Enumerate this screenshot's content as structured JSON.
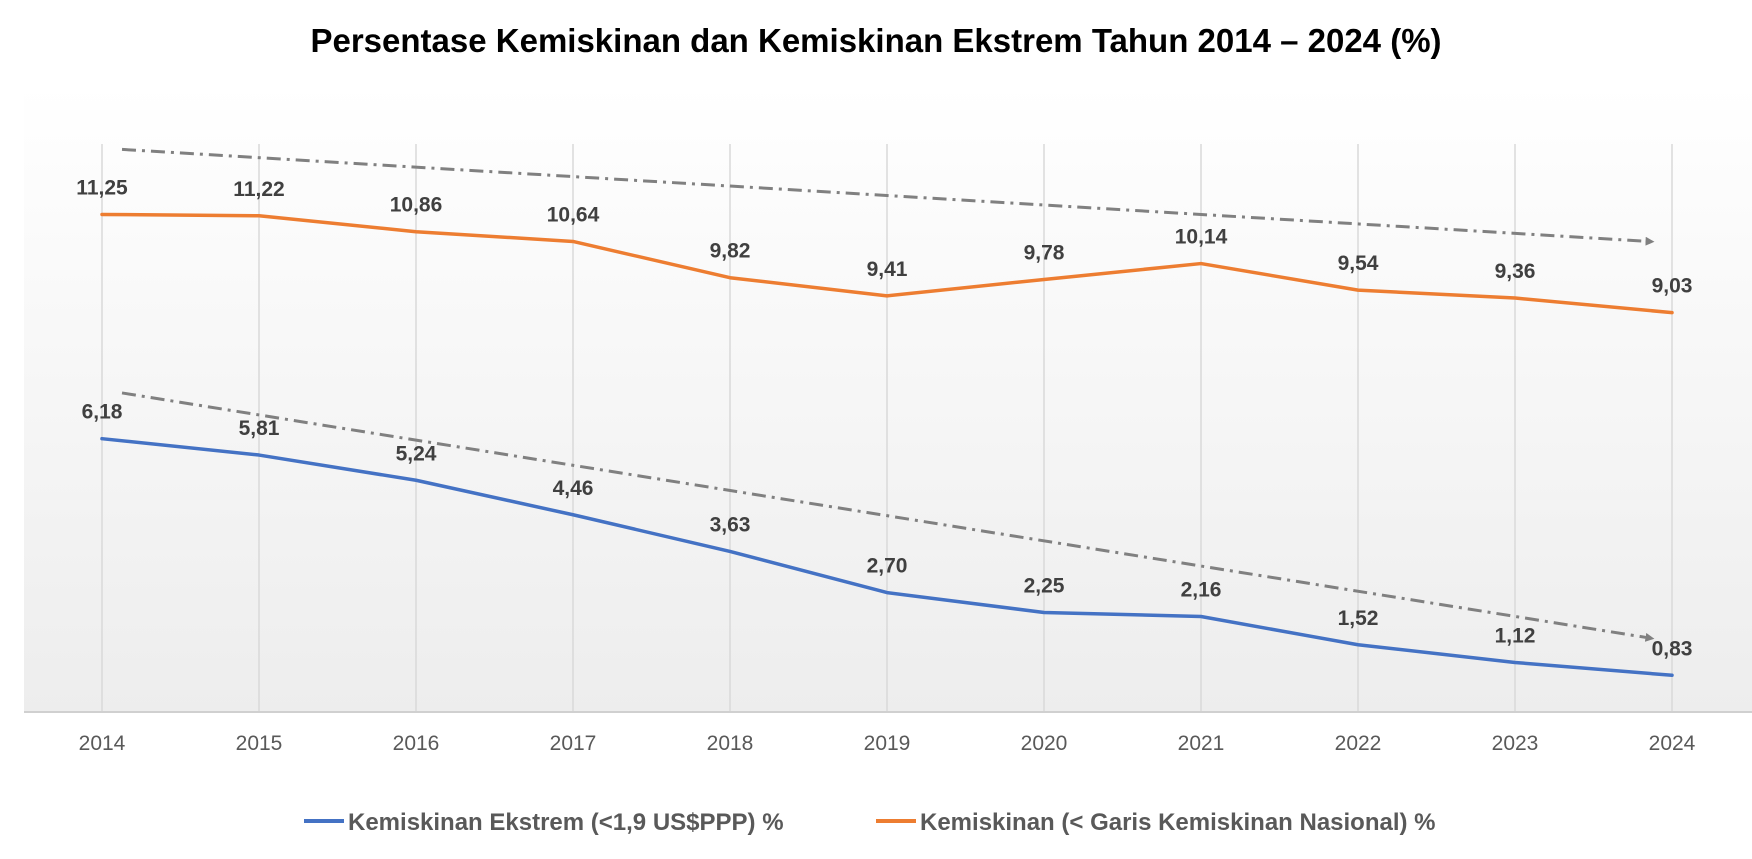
{
  "chart_data": {
    "type": "line",
    "title": "Persentase Kemiskinan dan Kemiskinan Ekstrem Tahun 2014 – 2024 (%)",
    "xlabel": "",
    "ylabel": "",
    "categories": [
      "2014",
      "2015",
      "2016",
      "2017",
      "2018",
      "2019",
      "2020",
      "2021",
      "2022",
      "2023",
      "2024"
    ],
    "series": [
      {
        "name": "Kemiskinan Ekstrem (<1,9 US$PPP) %",
        "color": "#4472C4",
        "values": [
          6.18,
          5.81,
          5.24,
          4.46,
          3.63,
          2.7,
          2.25,
          2.16,
          1.52,
          1.12,
          0.83
        ],
        "labels": [
          "6,18",
          "5,81",
          "5,24",
          "4,46",
          "3,63",
          "2,70",
          "2,25",
          "2,16",
          "1,52",
          "1,12",
          "0,83"
        ]
      },
      {
        "name": "Kemiskinan (< Garis Kemiskinan Nasional) %",
        "color": "#ED7D31",
        "values": [
          11.25,
          11.22,
          10.86,
          10.64,
          9.82,
          9.41,
          9.78,
          10.14,
          9.54,
          9.36,
          9.03
        ],
        "labels": [
          "11,25",
          "11,22",
          "10,86",
          "10,64",
          "9,82",
          "9,41",
          "9,78",
          "10,14",
          "9,54",
          "9,36",
          "9,03"
        ]
      }
    ],
    "trend_lines": [
      {
        "series": "Kemiskinan (< Garis Kemiskinan Nasional) %",
        "style": "dash-dot-arrow",
        "color": "#808080"
      },
      {
        "series": "Kemiskinan Ekstrem (<1,9 US$PPP) %",
        "style": "dash-dot-arrow",
        "color": "#808080"
      }
    ],
    "ylim": [
      0,
      14.2
    ],
    "grid": "vertical",
    "legend": "bottom",
    "background": "gradient"
  }
}
